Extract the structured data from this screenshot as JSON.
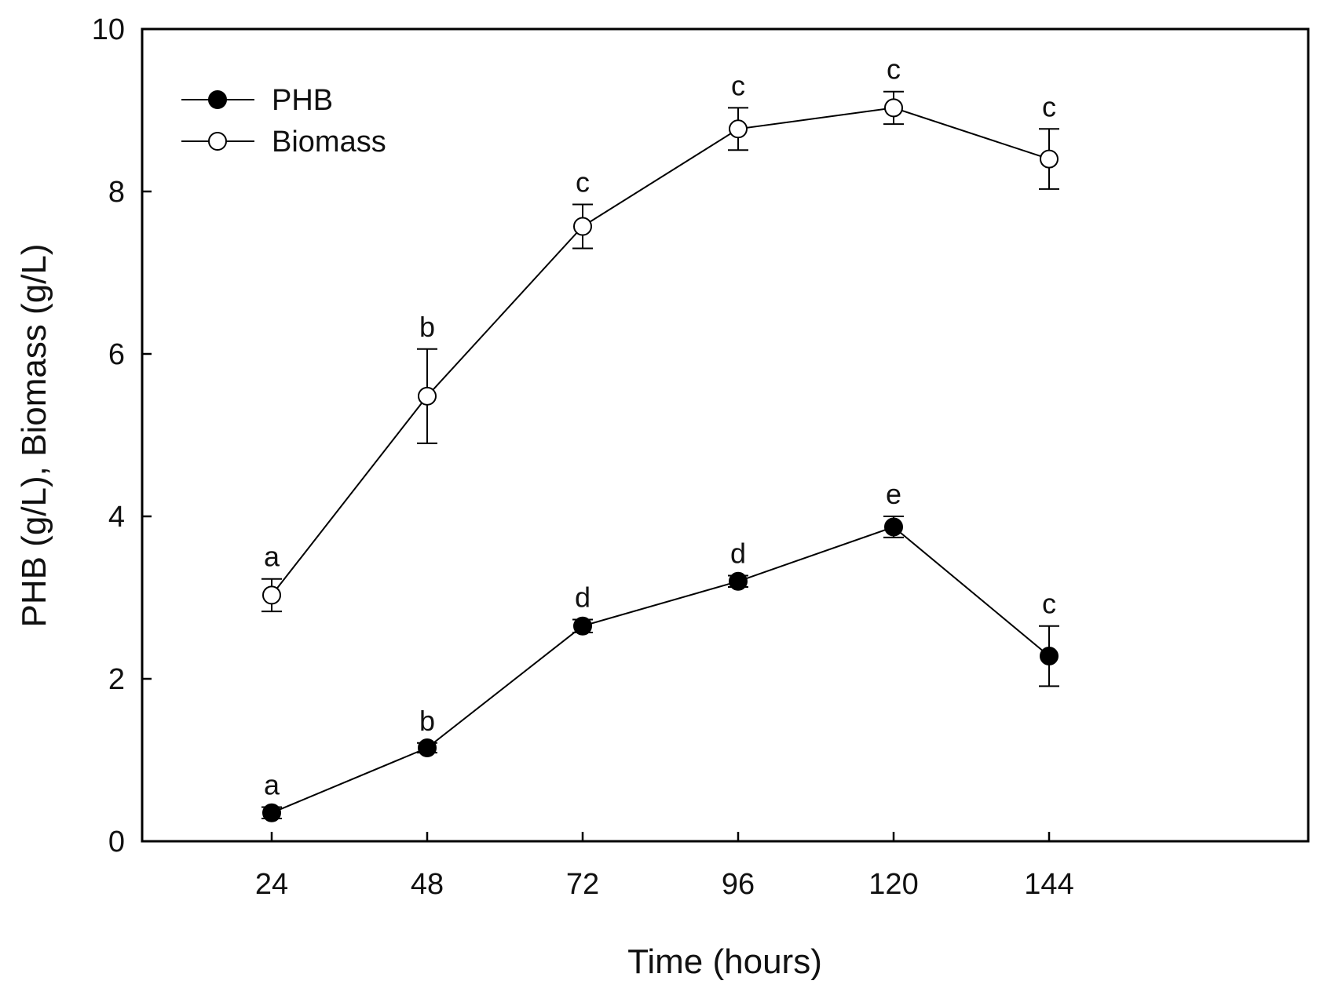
{
  "chart_data": {
    "type": "line",
    "title": "",
    "xlabel": "Time (hours)",
    "ylabel": "PHB (g/L), Biomass (g/L)",
    "xlim": [
      4,
      184
    ],
    "ylim": [
      0,
      10
    ],
    "xticks": [
      24,
      48,
      72,
      96,
      120,
      144
    ],
    "yticks": [
      0,
      2,
      4,
      6,
      8,
      10
    ],
    "grid": false,
    "legend_position": "top-left",
    "series": [
      {
        "name": "PHB",
        "marker": "filled-circle",
        "x": [
          24,
          48,
          72,
          96,
          120,
          144
        ],
        "y": [
          0.35,
          1.15,
          2.65,
          3.2,
          3.87,
          2.28
        ],
        "err": [
          0.07,
          0.06,
          0.08,
          0.07,
          0.13,
          0.37
        ],
        "labels": [
          "a",
          "b",
          "d",
          "d",
          "e",
          "c"
        ]
      },
      {
        "name": "Biomass",
        "marker": "open-circle",
        "x": [
          24,
          48,
          72,
          96,
          120,
          144
        ],
        "y": [
          3.03,
          5.48,
          7.57,
          8.77,
          9.03,
          8.4
        ],
        "err": [
          0.2,
          0.58,
          0.27,
          0.26,
          0.2,
          0.37
        ],
        "labels": [
          "a",
          "b",
          "c",
          "c",
          "c",
          "c"
        ]
      }
    ]
  }
}
